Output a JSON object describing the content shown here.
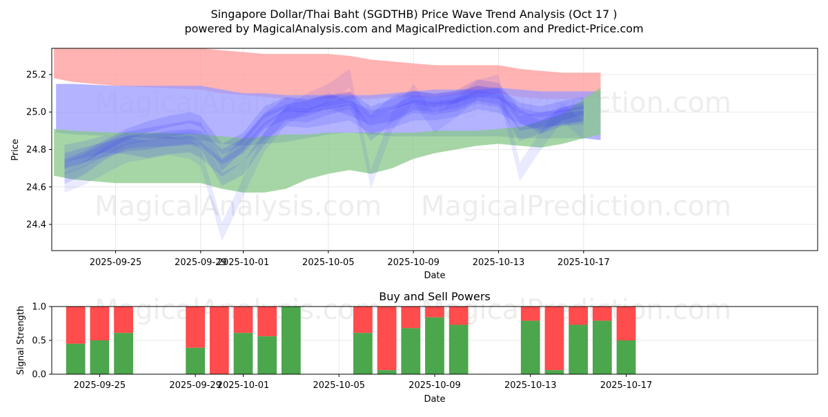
{
  "header": {
    "title": "Singapore Dollar/Thai Baht (SGDTHB) Price Wave Trend Analysis (Oct 17 )",
    "subtitle": "powered by MagicalAnalysis.com and MagicalPrediction.com and Predict-Price.com"
  },
  "watermarks": [
    "MagicalAnalysis.com",
    "MagicalPrediction.com"
  ],
  "chart_data": [
    {
      "type": "area",
      "name": "price-wave",
      "xlabel": "Date",
      "ylabel": "Price",
      "xlim": [
        -3,
        33
      ],
      "ylim": [
        24.26,
        25.34
      ],
      "x_ticks": [
        {
          "x": 0,
          "label": "2025-09-25"
        },
        {
          "x": 4,
          "label": "2025-09-29"
        },
        {
          "x": 6,
          "label": "2025-10-01"
        },
        {
          "x": 10,
          "label": "2025-10-05"
        },
        {
          "x": 14,
          "label": "2025-10-09"
        },
        {
          "x": 18,
          "label": "2025-10-13"
        },
        {
          "x": 22,
          "label": "2025-10-17"
        }
      ],
      "y_ticks": [
        24.4,
        24.6,
        24.8,
        25.0,
        25.2
      ],
      "grid": true,
      "bands": [
        {
          "name": "resistance",
          "color": "#ff9999",
          "x": [
            -2.9,
            -2,
            0,
            2,
            4,
            5,
            6,
            7,
            8,
            9,
            10,
            11,
            12,
            13,
            14,
            15,
            16,
            17,
            18,
            19,
            20,
            21,
            22,
            22.8
          ],
          "upper": [
            25.34,
            25.34,
            25.34,
            25.34,
            25.34,
            25.33,
            25.32,
            25.31,
            25.31,
            25.31,
            25.31,
            25.3,
            25.28,
            25.27,
            25.26,
            25.25,
            25.25,
            25.25,
            25.25,
            25.23,
            25.22,
            25.21,
            25.21,
            25.21
          ],
          "lower": [
            25.18,
            25.16,
            25.14,
            25.13,
            25.12,
            25.1,
            25.09,
            25.08,
            25.07,
            25.07,
            25.07,
            25.07,
            25.07,
            25.08,
            25.08,
            25.08,
            25.09,
            25.1,
            25.1,
            25.08,
            25.07,
            25.07,
            25.07,
            25.07
          ]
        },
        {
          "name": "middle",
          "color": "#9999ff",
          "x": [
            -2.8,
            -2,
            0,
            2,
            4,
            5,
            6,
            7,
            8,
            9,
            10,
            11,
            12,
            13,
            14,
            15,
            16,
            17,
            18,
            19,
            20,
            21,
            22,
            22.8
          ],
          "upper": [
            25.15,
            25.15,
            25.14,
            25.14,
            25.14,
            25.12,
            25.1,
            25.1,
            25.09,
            25.09,
            25.09,
            25.09,
            25.09,
            25.1,
            25.11,
            25.12,
            25.12,
            25.12,
            25.13,
            25.12,
            25.11,
            25.11,
            25.11,
            25.11
          ],
          "lower": [
            24.89,
            24.88,
            24.87,
            24.86,
            24.85,
            24.83,
            24.82,
            24.83,
            24.84,
            24.86,
            24.88,
            24.89,
            24.88,
            24.87,
            24.87,
            24.87,
            24.87,
            24.87,
            24.87,
            24.86,
            24.86,
            24.86,
            24.86,
            24.85
          ]
        },
        {
          "name": "support",
          "color": "#88c888",
          "x": [
            -2.9,
            -2,
            0,
            2,
            4,
            5,
            6,
            7,
            8,
            9,
            10,
            11,
            12,
            13,
            14,
            15,
            16,
            17,
            18,
            19,
            20,
            21,
            22,
            22.8
          ],
          "upper": [
            24.91,
            24.9,
            24.89,
            24.89,
            24.88,
            24.87,
            24.86,
            24.87,
            24.88,
            24.88,
            24.89,
            24.89,
            24.89,
            24.89,
            24.89,
            24.9,
            24.9,
            24.9,
            24.91,
            24.92,
            24.95,
            24.99,
            25.07,
            25.13
          ],
          "lower": [
            24.66,
            24.64,
            24.62,
            24.62,
            24.62,
            24.59,
            24.57,
            24.57,
            24.59,
            24.64,
            24.67,
            24.69,
            24.67,
            24.7,
            24.75,
            24.78,
            24.8,
            24.82,
            24.83,
            24.82,
            24.81,
            24.83,
            24.86,
            24.88
          ]
        }
      ],
      "wave_series": [
        {
          "x": [
            -2.4,
            -1.5,
            -0.5,
            0.5,
            1.5,
            2.5,
            3.5,
            4.0,
            5.0,
            6.0,
            7.0,
            8.0,
            9.0,
            10.0,
            11.0,
            12.0,
            13.0,
            14.0,
            15.0,
            16.0,
            17.0,
            18.0,
            19.0,
            20.0,
            21.0,
            22.0
          ],
          "y": [
            24.7,
            24.74,
            24.8,
            24.86,
            24.88,
            24.9,
            24.92,
            24.91,
            24.72,
            24.83,
            24.96,
            25.04,
            25.03,
            25.05,
            25.07,
            24.95,
            25.05,
            25.08,
            25.06,
            25.08,
            25.14,
            25.12,
            24.98,
            24.92,
            24.99,
            25.02
          ],
          "half_width": 0.035,
          "opacity": 0.16
        },
        {
          "x": [
            -2.4,
            -1.5,
            -0.5,
            0.5,
            1.5,
            2.5,
            3.5,
            4.0,
            5.0,
            6.0,
            7.0,
            8.0,
            9.0,
            10.0,
            11.0,
            12.0,
            13.0,
            14.0,
            15.0,
            16.0,
            17.0,
            18.0,
            19.0,
            20.0,
            21.0,
            22.0
          ],
          "y": [
            24.74,
            24.77,
            24.8,
            24.83,
            24.84,
            24.86,
            24.87,
            24.86,
            24.76,
            24.82,
            24.95,
            25.0,
            25.02,
            25.06,
            25.02,
            24.97,
            24.99,
            25.05,
            25.04,
            25.06,
            25.1,
            25.08,
            24.94,
            24.96,
            24.97,
            24.99
          ],
          "half_width": 0.04,
          "opacity": 0.16
        },
        {
          "x": [
            -2.4,
            -1.5,
            -0.5,
            0.5,
            1.5,
            2.5,
            3.5,
            4.0,
            5.0,
            6.0,
            7.0,
            8.0,
            9.0,
            10.0,
            11.0,
            12.0,
            13.0,
            14.0,
            15.0,
            16.0,
            17.0,
            18.0,
            19.0,
            20.0,
            21.0,
            22.0
          ],
          "y": [
            24.65,
            24.7,
            24.78,
            24.84,
            24.85,
            24.85,
            24.86,
            24.84,
            24.64,
            24.7,
            24.86,
            24.99,
            24.98,
            25.02,
            25.05,
            24.88,
            24.98,
            25.03,
            25.02,
            25.04,
            25.08,
            25.06,
            24.88,
            24.92,
            24.96,
            24.97
          ],
          "half_width": 0.035,
          "opacity": 0.15
        },
        {
          "x": [
            -2.4,
            -1.5,
            -0.5,
            0.5,
            1.5,
            2.5,
            3.5,
            4.0,
            5.0,
            6.0,
            7.0,
            8.0,
            9.0,
            10.0,
            11.0,
            12.0,
            13.0,
            14.0,
            15.0,
            16.0,
            17.0,
            18.0,
            19.0,
            20.0,
            21.0,
            22.0
          ],
          "y": [
            24.78,
            24.8,
            24.83,
            24.82,
            24.8,
            24.82,
            24.83,
            24.8,
            24.7,
            24.78,
            24.9,
            24.97,
            24.96,
            24.98,
            25.0,
            24.93,
            24.96,
            25.0,
            25.0,
            25.02,
            25.06,
            25.04,
            24.98,
            24.95,
            24.98,
            25.0
          ],
          "half_width": 0.045,
          "opacity": 0.14
        },
        {
          "x": [
            -2.4,
            -1.5,
            -0.5,
            0.5,
            1.5,
            2.5,
            3.5,
            4.0,
            5.0,
            6.0,
            7.0,
            8.0,
            9.0,
            10.0,
            11.0,
            12.0,
            13.0,
            14.0,
            15.0,
            16.0,
            17.0,
            18.0,
            19.0,
            20.0,
            21.0,
            22.0
          ],
          "y": [
            24.62,
            24.66,
            24.72,
            24.78,
            24.8,
            24.82,
            24.8,
            24.76,
            24.36,
            24.6,
            24.84,
            24.98,
            25.05,
            25.1,
            25.18,
            24.64,
            24.95,
            25.1,
            24.94,
            25.02,
            25.12,
            25.15,
            24.68,
            24.85,
            25.0,
            24.9
          ],
          "half_width": 0.05,
          "opacity": 0.1
        },
        {
          "x": [
            -2.4,
            -1.5,
            -0.5,
            0.5,
            1.5,
            2.5,
            3.5,
            4.0,
            5.0,
            6.0,
            7.0,
            8.0,
            9.0,
            10.0,
            11.0,
            12.0,
            13.0,
            14.0,
            15.0,
            16.0,
            17.0,
            18.0,
            19.0,
            20.0,
            21.0,
            22.0
          ],
          "y": [
            24.72,
            24.76,
            24.82,
            24.88,
            24.92,
            24.95,
            24.97,
            24.95,
            24.8,
            24.86,
            25.0,
            25.05,
            25.04,
            25.06,
            25.08,
            25.0,
            25.04,
            25.08,
            25.07,
            25.08,
            25.11,
            25.1,
            25.02,
            25.0,
            25.03,
            25.05
          ],
          "half_width": 0.03,
          "opacity": 0.16
        }
      ]
    },
    {
      "type": "bar",
      "name": "buy-sell-powers",
      "title": "Buy and Sell Powers",
      "xlabel": "Date",
      "ylabel": "Signal Strength",
      "xlim": [
        -2,
        30
      ],
      "ylim": [
        0,
        1.0
      ],
      "y_ticks": [
        0.0,
        0.5,
        1.0
      ],
      "x_ticks": [
        {
          "x": 0,
          "label": "2025-09-25"
        },
        {
          "x": 4,
          "label": "2025-09-29"
        },
        {
          "x": 6,
          "label": "2025-10-01"
        },
        {
          "x": 10,
          "label": "2025-10-05"
        },
        {
          "x": 14,
          "label": "2025-10-09"
        },
        {
          "x": 18,
          "label": "2025-10-13"
        },
        {
          "x": 22,
          "label": "2025-10-17"
        }
      ],
      "colors": {
        "buy": "#4ca64c",
        "sell": "#ff4c4c"
      },
      "bars": [
        {
          "x": -1,
          "buy": 0.45
        },
        {
          "x": 0,
          "buy": 0.5
        },
        {
          "x": 1,
          "buy": 0.61
        },
        {
          "x": 4,
          "buy": 0.39
        },
        {
          "x": 5,
          "buy": 0.0
        },
        {
          "x": 6,
          "buy": 0.61
        },
        {
          "x": 7,
          "buy": 0.56
        },
        {
          "x": 8,
          "buy": 1.0
        },
        {
          "x": 11,
          "buy": 0.61
        },
        {
          "x": 12,
          "buy": 0.06
        },
        {
          "x": 13,
          "buy": 0.68
        },
        {
          "x": 14,
          "buy": 0.84
        },
        {
          "x": 15,
          "buy": 0.73
        },
        {
          "x": 18,
          "buy": 0.79
        },
        {
          "x": 19,
          "buy": 0.06
        },
        {
          "x": 20,
          "buy": 0.73
        },
        {
          "x": 21,
          "buy": 0.79
        },
        {
          "x": 22,
          "buy": 0.5
        }
      ]
    }
  ]
}
